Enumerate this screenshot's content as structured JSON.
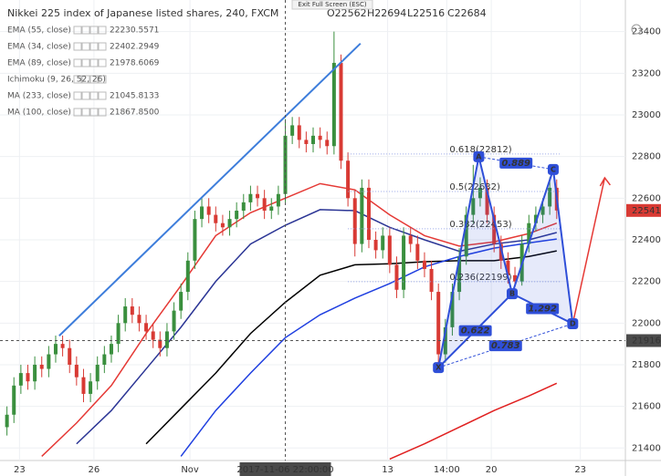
{
  "chart_data": {
    "type": "candlestick",
    "title": "Nikkei 225 index of Japanese listed shares, 240, FXCM",
    "header_values": [
      "O22562",
      "H22694",
      "L22516",
      "C22684"
    ],
    "tooltip": "Exit Full Screen (ESC)",
    "up_color": "#3a8f3e",
    "down_color": "#d83a34",
    "open": [
      21500,
      21560,
      21700,
      21760,
      21720,
      21800,
      21780,
      21850,
      21900,
      21880,
      21800,
      21740,
      21660,
      21720,
      21800,
      21850,
      21900,
      22000,
      22080,
      22040,
      22000,
      21960,
      21920,
      21880,
      21960,
      22060,
      22150,
      22300,
      22500,
      22560,
      22520,
      22480,
      22460,
      22500,
      22540,
      22580,
      22620,
      22600,
      22540,
      22560,
      22620,
      22900,
      22950,
      22880,
      22860,
      22900,
      22880,
      22850,
      23250,
      22780,
      22600,
      22380,
      22650,
      22400,
      22350,
      22420,
      22280,
      22160,
      22420,
      22380,
      22300,
      22260,
      22150,
      21850,
      21980,
      22150,
      22320,
      22520,
      22600,
      22650,
      22520,
      22380,
      22300,
      22230,
      22200,
      22380,
      22480,
      22520,
      22560,
      22650
    ],
    "high": [
      21600,
      21740,
      21800,
      21800,
      21840,
      21840,
      21890,
      21940,
      21940,
      21920,
      21840,
      21780,
      21760,
      21840,
      21890,
      21940,
      22040,
      22120,
      22120,
      22080,
      22040,
      22000,
      21960,
      22000,
      22100,
      22190,
      22340,
      22540,
      22600,
      22600,
      22560,
      22520,
      22540,
      22580,
      22620,
      22660,
      22660,
      22640,
      22600,
      22660,
      22980,
      22990,
      22990,
      22920,
      22940,
      22940,
      22920,
      23400,
      23290,
      22820,
      22640,
      22690,
      22690,
      22440,
      22460,
      22460,
      22320,
      22460,
      22460,
      22420,
      22340,
      22300,
      22190,
      22020,
      22190,
      22360,
      22560,
      22760,
      22700,
      22690,
      22560,
      22420,
      22340,
      22270,
      22420,
      22520,
      22560,
      22600,
      22700,
      22690
    ],
    "low": [
      21460,
      21520,
      21660,
      21680,
      21680,
      21740,
      21740,
      21810,
      21840,
      21760,
      21700,
      21620,
      21620,
      21680,
      21760,
      21810,
      21860,
      21960,
      22000,
      21960,
      21920,
      21880,
      21840,
      21840,
      21920,
      22020,
      22110,
      22260,
      22460,
      22480,
      22440,
      22420,
      22420,
      22460,
      22500,
      22540,
      22560,
      22500,
      22500,
      22520,
      22580,
      22860,
      22840,
      22820,
      22820,
      22840,
      22810,
      22810,
      22740,
      22560,
      22320,
      22340,
      22360,
      22310,
      22310,
      22240,
      22120,
      22120,
      22340,
      22260,
      22220,
      22110,
      21800,
      21810,
      21940,
      22110,
      22280,
      22480,
      22560,
      22480,
      22340,
      22260,
      22190,
      22180,
      22180,
      22340,
      22440,
      22480,
      22520,
      22500
    ],
    "close": [
      21560,
      21700,
      21760,
      21720,
      21800,
      21780,
      21850,
      21900,
      21880,
      21800,
      21740,
      21660,
      21720,
      21800,
      21850,
      21900,
      22000,
      22080,
      22040,
      22000,
      21960,
      21920,
      21880,
      21960,
      22060,
      22150,
      22300,
      22500,
      22560,
      22520,
      22480,
      22460,
      22500,
      22540,
      22580,
      22620,
      22600,
      22540,
      22560,
      22620,
      22900,
      22950,
      22880,
      22860,
      22900,
      22880,
      22850,
      23250,
      22780,
      22600,
      22380,
      22650,
      22400,
      22350,
      22420,
      22280,
      22160,
      22420,
      22380,
      22300,
      22260,
      22150,
      21850,
      21980,
      22150,
      22320,
      22520,
      22600,
      22650,
      22520,
      22380,
      22300,
      22230,
      22200,
      22380,
      22480,
      22520,
      22560,
      22650,
      22541
    ],
    "ma_index": [
      0,
      5,
      10,
      15,
      20,
      25,
      30,
      35,
      40,
      45,
      50,
      55,
      60,
      65,
      70,
      75,
      79
    ],
    "series": [
      {
        "name": "EMA (55, close)",
        "legend_value": "22230.5571",
        "color": "#2b3595",
        "values": [
          null,
          null,
          21420,
          21580,
          21780,
          21980,
          22200,
          22380,
          22470,
          22545,
          22540,
          22460,
          22400,
          22345,
          22380,
          22400,
          22435
        ]
      },
      {
        "name": "EMA (34, close)",
        "legend_value": "22402.2949",
        "color": "#e53935",
        "values": [
          null,
          21360,
          21520,
          21700,
          21950,
          22180,
          22420,
          22530,
          22600,
          22670,
          22640,
          22520,
          22420,
          22370,
          22390,
          22430,
          22480
        ]
      },
      {
        "name": "EMA (89, close)",
        "legend_value": "21978.6069",
        "color": "#000000",
        "values": [
          null,
          null,
          null,
          null,
          21420,
          21590,
          21760,
          21950,
          22100,
          22230,
          22280,
          22285,
          22295,
          22300,
          22300,
          22320,
          22347
        ]
      },
      {
        "name": "MA (233, close)",
        "legend_value": "21045.8133",
        "color": "#e02020",
        "values": [
          null,
          null,
          null,
          null,
          null,
          null,
          null,
          null,
          null,
          null,
          null,
          21347,
          21420,
          21500,
          21580,
          21650,
          21711
        ]
      },
      {
        "name": "MA (100, close)",
        "legend_value": "21867.8500",
        "color": "#1f3fe0",
        "values": [
          null,
          null,
          null,
          null,
          null,
          21360,
          21580,
          21760,
          21930,
          22040,
          22120,
          22190,
          22270,
          22320,
          22360,
          22385,
          22404
        ]
      }
    ],
    "hidden_indicator": "Ichimoku (9, 26, 52, 26)",
    "xlim": [
      -1,
      89
    ],
    "ylim": [
      21340,
      23530
    ],
    "yticks": [
      21400,
      21600,
      21800,
      22000,
      22200,
      22400,
      22600,
      22800,
      23000,
      23200,
      23400
    ],
    "xticks": [
      {
        "value": 1.8,
        "label": "23"
      },
      {
        "value": 12.5,
        "label": "26"
      },
      {
        "value": 26.3,
        "label": "Nov"
      },
      {
        "value": 54.7,
        "label": "13"
      },
      {
        "value": 63.2,
        "label": "14:00"
      },
      {
        "value": 69.6,
        "label": "20"
      },
      {
        "value": 82.4,
        "label": "23"
      }
    ],
    "crosshair": {
      "label": "2017-11-06 22:00:00",
      "index": 40,
      "value": 21916
    },
    "last_price": 22541,
    "trendline": {
      "color": "#3d7ddb",
      "start": {
        "index": 7.5,
        "value": 21939
      },
      "end": {
        "index": 50.8,
        "value": 23343
      }
    },
    "arrow": {
      "color": "#e53935",
      "start": {
        "index": 81.3,
        "value": 21997
      },
      "end": {
        "index": 85.9,
        "value": 22698
      }
    },
    "fib_levels": [
      {
        "label": "0.618(22812)",
        "value": 22812
      },
      {
        "label": "0.5(22632)",
        "value": 22632
      },
      {
        "label": "0.382(22453)",
        "value": 22453
      },
      {
        "label": "0.236(22199)",
        "value": 22199
      }
    ],
    "pattern": {
      "color": "#2f4fd8",
      "points": [
        {
          "label": "X",
          "index": 62,
          "value": 21786
        },
        {
          "label": "A",
          "index": 67.8,
          "value": 22799
        },
        {
          "label": "B",
          "index": 72.6,
          "value": 22141
        },
        {
          "label": "C",
          "index": 78.5,
          "value": 22738
        },
        {
          "label": "D",
          "index": 81.3,
          "value": 21997
        }
      ],
      "ratios": [
        0.622,
        0.889,
        1.292,
        0.783
      ]
    }
  }
}
